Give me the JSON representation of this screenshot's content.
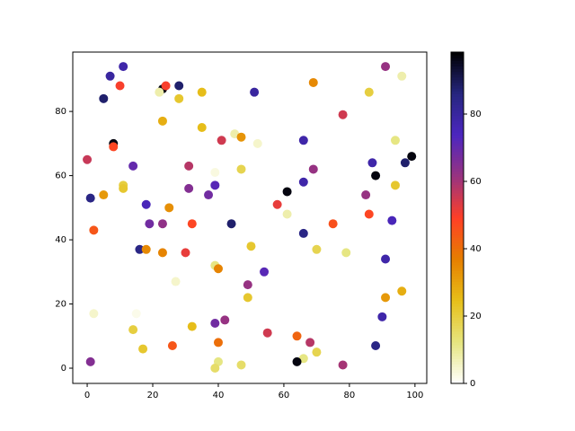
{
  "chart_data": {
    "type": "scatter",
    "x": [
      7,
      11,
      5,
      10,
      23,
      24,
      28,
      22,
      23,
      28,
      35,
      51,
      69,
      86,
      96,
      91,
      78,
      35,
      45,
      47,
      41,
      52,
      66,
      94,
      8,
      8,
      0,
      14,
      31,
      47,
      39,
      69,
      87,
      97,
      99,
      88,
      66,
      94,
      39,
      31,
      37,
      85,
      5,
      11,
      11,
      1,
      61,
      18,
      25,
      58,
      61,
      86,
      93,
      19,
      23,
      32,
      44,
      75,
      2,
      66,
      16,
      18,
      23,
      30,
      50,
      70,
      79,
      91,
      39,
      40,
      54,
      27,
      49,
      96,
      49,
      91,
      2,
      15,
      90,
      42,
      39,
      32,
      14,
      55,
      64,
      68,
      40,
      26,
      17,
      88,
      70,
      66,
      40,
      64,
      1,
      47,
      78,
      39
    ],
    "y": [
      91,
      94,
      84,
      88,
      87,
      88,
      88,
      86,
      77,
      84,
      86,
      86,
      89,
      86,
      91,
      94,
      79,
      75,
      73,
      72,
      71,
      70,
      71,
      71,
      70,
      69,
      65,
      63,
      63,
      62,
      61,
      62,
      64,
      64,
      66,
      60,
      58,
      57,
      57,
      56,
      54,
      54,
      54,
      57,
      56,
      53,
      55,
      51,
      50,
      51,
      48,
      48,
      46,
      45,
      45,
      45,
      45,
      45,
      43,
      42,
      37,
      37,
      36,
      36,
      38,
      37,
      36,
      34,
      32,
      31,
      30,
      27,
      26,
      24,
      22,
      22,
      17,
      17,
      16,
      15,
      14,
      13,
      12,
      11,
      10,
      8,
      8,
      7,
      6,
      7,
      5,
      3,
      2,
      2,
      2,
      1,
      1,
      0
    ],
    "c": [
      80,
      78,
      88,
      50,
      97,
      50,
      88,
      8,
      28,
      22,
      25,
      80,
      35,
      20,
      8,
      62,
      55,
      25,
      8,
      33,
      55,
      5,
      78,
      12,
      97,
      48,
      56,
      70,
      58,
      18,
      3,
      62,
      78,
      88,
      97,
      97,
      78,
      22,
      72,
      65,
      68,
      62,
      32,
      20,
      22,
      85,
      97,
      75,
      34,
      52,
      8,
      48,
      75,
      68,
      63,
      48,
      88,
      46,
      45,
      85,
      85,
      35,
      36,
      52,
      22,
      18,
      12,
      78,
      12,
      36,
      72,
      5,
      62,
      28,
      22,
      32,
      5,
      2,
      78,
      62,
      68,
      25,
      20,
      55,
      42,
      58,
      40,
      45,
      22,
      85,
      18,
      12,
      12,
      97,
      65,
      15,
      60,
      15
    ],
    "xlim": [
      -4.4,
      103.6
    ],
    "ylim": [
      -4.75,
      98.5
    ],
    "xticks": [
      0,
      20,
      40,
      60,
      80,
      100
    ],
    "yticks": [
      0,
      20,
      40,
      60,
      80
    ],
    "colormap": "CMRmap_r",
    "clim": [
      0,
      98.4
    ],
    "cticks": [
      0,
      20,
      40,
      60,
      80
    ]
  }
}
